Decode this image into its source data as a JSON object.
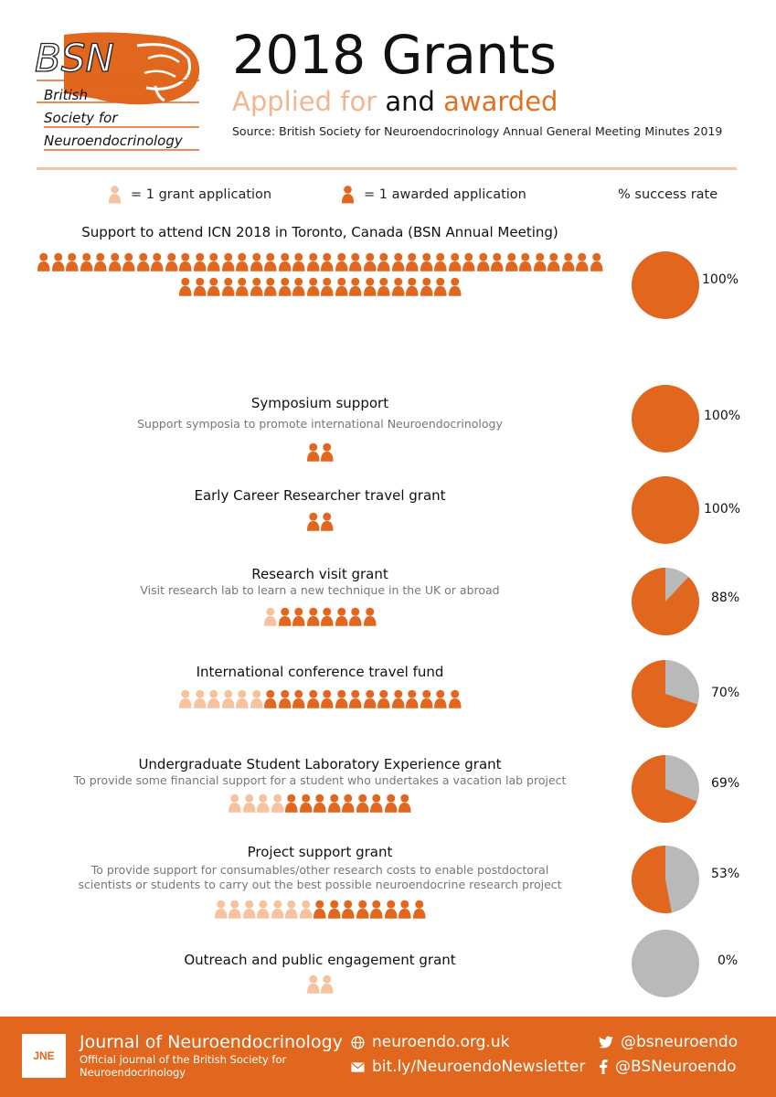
{
  "header": {
    "logo_text": "BSN",
    "org_name": [
      "British",
      "Society for",
      "Neuroendocrinology"
    ],
    "title": "2018 Grants",
    "subtitle_part1": "Applied for",
    "subtitle_part2": "and",
    "subtitle_part3": "awarded",
    "source": "Source: British Society for Neuroendocrinology Annual General Meeting Minutes 2019"
  },
  "legend": {
    "application_label": "= 1 grant application",
    "awarded_label": "= 1 awarded application",
    "success_label": "% success rate"
  },
  "colors": {
    "awarded": "#e0671d",
    "applied": "#f5c3a0",
    "unsuccessful_pie": "#b9b9b9",
    "footer": "#e0671d"
  },
  "grants": [
    {
      "title": "Support to attend ICN 2018 in Toronto, Canada (BSN Annual Meeting)",
      "description": "",
      "applied": 60,
      "awarded": 60,
      "success_rate": 100,
      "success_label": "100%"
    },
    {
      "title": "Symposium support",
      "description": "Support symposia to promote international Neuroendocrinology",
      "applied": 2,
      "awarded": 2,
      "success_rate": 100,
      "success_label": "100%"
    },
    {
      "title": "Early Career Researcher travel grant",
      "description": "",
      "applied": 2,
      "awarded": 2,
      "success_rate": 100,
      "success_label": "100%"
    },
    {
      "title": "Research visit grant",
      "description": "Visit research lab to learn a new technique in the UK or abroad",
      "applied": 8,
      "awarded": 7,
      "success_rate": 88,
      "success_label": "88%"
    },
    {
      "title": "International conference travel fund",
      "description": "",
      "applied": 20,
      "awarded": 14,
      "success_rate": 70,
      "success_label": "70%"
    },
    {
      "title": "Undergraduate Student Laboratory Experience grant",
      "description": "To provide some financial support for a student who undertakes a vacation lab project",
      "applied": 13,
      "awarded": 9,
      "success_rate": 69,
      "success_label": "69%"
    },
    {
      "title": "Project support grant",
      "description": "To provide support for consumables/other research costs to enable postdoctoral\nscientists or students to carry out the best possible neuroendocrine research project",
      "applied": 15,
      "awarded": 8,
      "success_rate": 53,
      "success_label": "53%"
    },
    {
      "title": "Outreach and public engagement grant",
      "description": "",
      "applied": 2,
      "awarded": 0,
      "success_rate": 0,
      "success_label": "0%"
    }
  ],
  "footer": {
    "jne_logo": "JNE",
    "journal_title": "Journal of Neuroendocrinology",
    "journal_sub": "Official journal of the British Society for Neuroendocrinology",
    "website": "neuroendo.org.uk",
    "newsletter": "bit.ly/NeuroendoNewsletter",
    "twitter": "@bsneuroendo",
    "facebook": "@BSNeuroendo"
  }
}
